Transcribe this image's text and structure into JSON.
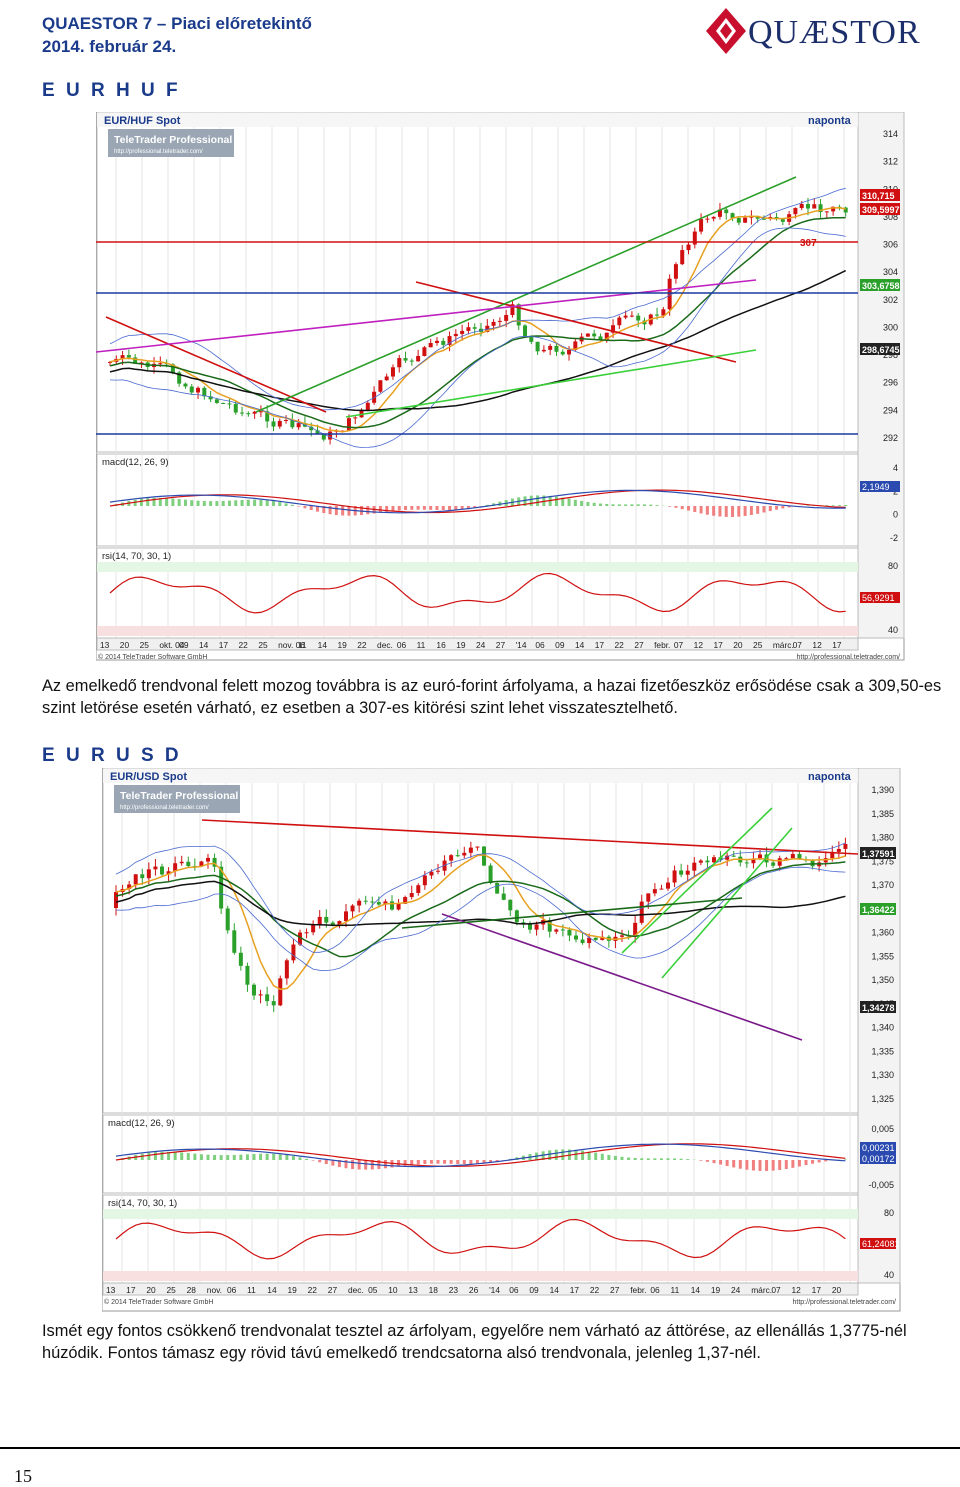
{
  "header": {
    "title": "QUAESTOR 7 – Piaci előretekintő",
    "date": "2014. február 24.",
    "logo_text": "QUÆSTOR"
  },
  "sections": [
    {
      "name": "E U R H U F",
      "chart": {
        "title": "EUR/HUF Spot",
        "frequency": "naponta",
        "badge": "TeleTrader Professional",
        "badge_url": "http://professional.teletrader.com/",
        "resistance_label": "307",
        "price_ticks": [
          "314",
          "312",
          "310",
          "308",
          "306",
          "304",
          "302",
          "300",
          "298",
          "296",
          "294",
          "292"
        ],
        "price_labels": [
          "310,715",
          "309,5997",
          "303,6758",
          "298,6745"
        ],
        "macd_label": "macd(12, 26, 9)",
        "macd_ticks": [
          "4",
          "2",
          "0",
          "-2"
        ],
        "macd_value": "2,1949",
        "rsi_label": "rsi(14, 70, 30, 1)",
        "rsi_ticks": [
          "80",
          "60",
          "40"
        ],
        "rsi_value": "56,9291",
        "date_ticks": [
          "13",
          "20",
          "25",
          "okt. 04",
          "09",
          "14",
          "17",
          "22",
          "25",
          "nov. 06",
          "11",
          "14",
          "19",
          "22",
          "dec.",
          "06",
          "11",
          "16",
          "19",
          "24",
          "27",
          "'14",
          "06",
          "09",
          "14",
          "17",
          "22",
          "27",
          "febr.",
          "07",
          "12",
          "17",
          "20",
          "25",
          "márc.",
          "07",
          "12",
          "17"
        ],
        "copyright": "© 2014 TeleTrader Software GmbH",
        "source_url": "http://professional.teletrader.com/"
      },
      "text": "Az emelkedő trendvonal felett mozog továbbra is az euró-forint árfolyama, a hazai fizetőeszköz erősödése csak a 309,50-es szint letörése esetén várható, ez esetben a 307-es kitörési szint lehet visszatesztelhető."
    },
    {
      "name": "E U R U S D",
      "chart": {
        "title": "EUR/USD Spot",
        "frequency": "naponta",
        "badge": "TeleTrader Professional",
        "badge_url": "http://professional.teletrader.com/",
        "price_ticks": [
          "1,390",
          "1,385",
          "1,380",
          "1,375",
          "1,370",
          "1,365",
          "1,360",
          "1,355",
          "1,350",
          "1,345",
          "1,340",
          "1,335",
          "1,330",
          "1,325"
        ],
        "price_labels": [
          "1,37591",
          "1,36422",
          "1,34278"
        ],
        "macd_label": "macd(12, 26, 9)",
        "macd_ticks": [
          "0,005",
          "0",
          "-0,005"
        ],
        "macd_values": [
          "0,00231",
          "0,00172"
        ],
        "rsi_label": "rsi(14, 70, 30, 1)",
        "rsi_ticks": [
          "80",
          "60",
          "40"
        ],
        "rsi_value": "61,24081",
        "date_ticks": [
          "13",
          "17",
          "20",
          "25",
          "28",
          "nov.",
          "06",
          "11",
          "14",
          "19",
          "22",
          "27",
          "dec.",
          "05",
          "10",
          "13",
          "18",
          "23",
          "26",
          "'14",
          "06",
          "09",
          "14",
          "17",
          "22",
          "27",
          "febr.",
          "06",
          "11",
          "14",
          "19",
          "24",
          "márc.",
          "07",
          "12",
          "17",
          "20"
        ],
        "copyright": "© 2014 TeleTrader Software GmbH",
        "source_url": "http://professional.teletrader.com/"
      },
      "text": "Ismét egy fontos csökkenő trendvonalat tesztel az árfolyam, egyelőre nem várható az áttörése, az ellenállás 1,3775-nél húzódik. Fontos támasz egy rövid távú emelkedő trendcsatorna alsó trendvonala, jelenleg 1,37-nél."
    }
  ],
  "footer": {
    "page_number": "15"
  },
  "colors": {
    "heading": "#1a3a8a",
    "up": "#2aa02a",
    "down": "#d01010",
    "grid": "#e6e6e6"
  }
}
